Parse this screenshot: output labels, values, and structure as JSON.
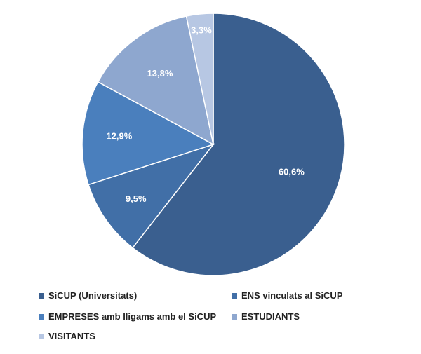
{
  "chart_data": {
    "type": "pie",
    "title": "",
    "legend_position": "bottom",
    "categories": [
      "SiCUP (Universitats)",
      "ENS vinculats al SiCUP",
      "EMPRESES amb lligams amb el SiCUP",
      "ESTUDIANTS",
      "VISITANTS"
    ],
    "values": [
      60.6,
      9.5,
      12.9,
      13.8,
      3.3
    ],
    "labels": [
      "60,6%",
      "9,5%",
      "12,9%",
      "13,8%",
      "3,3%"
    ],
    "colors": [
      "#3a5f8f",
      "#416fa7",
      "#4a7fbd",
      "#8ea7cf",
      "#b7c7e3"
    ],
    "slice_order": "clockwise from top"
  }
}
